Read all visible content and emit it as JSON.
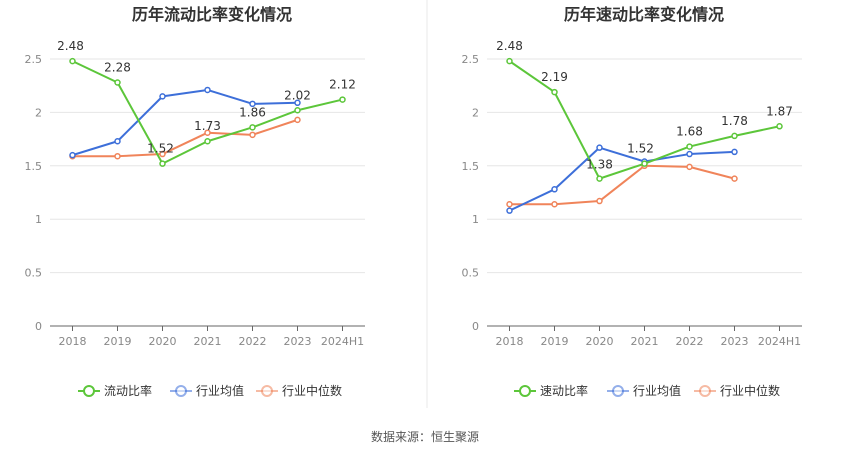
{
  "source": "数据来源：恒生聚源",
  "colors": {
    "main": "#5cc63a",
    "industry_avg": "#3d6fd9",
    "industry_median": "#f0845a",
    "grid": "#e6e6e6",
    "axis": "#666666",
    "divider": "#e8e8e8"
  },
  "chart_data": [
    {
      "type": "line",
      "title": "历年流动比率变化情况",
      "categories": [
        "2018",
        "2019",
        "2020",
        "2021",
        "2022",
        "2023",
        "2024H1"
      ],
      "ylim": [
        0,
        2.5
      ],
      "yticks": [
        "0",
        "0.5",
        "1",
        "1.5",
        "2",
        "2.5"
      ],
      "grid": true,
      "legend_position": "bottom",
      "series": [
        {
          "name": "流动比率",
          "color_key": "main",
          "values": [
            2.48,
            2.28,
            1.52,
            1.73,
            1.86,
            2.02,
            2.12
          ],
          "labeled": true
        },
        {
          "name": "行业均值",
          "color_key": "industry_avg",
          "values": [
            1.6,
            1.73,
            2.15,
            2.21,
            2.08,
            2.09,
            null
          ],
          "labeled": false
        },
        {
          "name": "行业中位数",
          "color_key": "industry_median",
          "values": [
            1.59,
            1.59,
            1.61,
            1.81,
            1.79,
            1.93,
            null
          ],
          "labeled": false
        }
      ]
    },
    {
      "type": "line",
      "title": "历年速动比率变化情况",
      "categories": [
        "2018",
        "2019",
        "2020",
        "2021",
        "2022",
        "2023",
        "2024H1"
      ],
      "ylim": [
        0,
        2.5
      ],
      "yticks": [
        "0",
        "0.5",
        "1",
        "1.5",
        "2",
        "2.5"
      ],
      "grid": true,
      "legend_position": "bottom",
      "series": [
        {
          "name": "速动比率",
          "color_key": "main",
          "values": [
            2.48,
            2.19,
            1.38,
            1.52,
            1.68,
            1.78,
            1.87
          ],
          "labeled": true
        },
        {
          "name": "行业均值",
          "color_key": "industry_avg",
          "values": [
            1.08,
            1.28,
            1.67,
            1.54,
            1.61,
            1.63,
            null
          ],
          "labeled": false
        },
        {
          "name": "行业中位数",
          "color_key": "industry_median",
          "values": [
            1.14,
            1.14,
            1.17,
            1.5,
            1.49,
            1.38,
            null
          ],
          "labeled": false
        }
      ]
    }
  ]
}
